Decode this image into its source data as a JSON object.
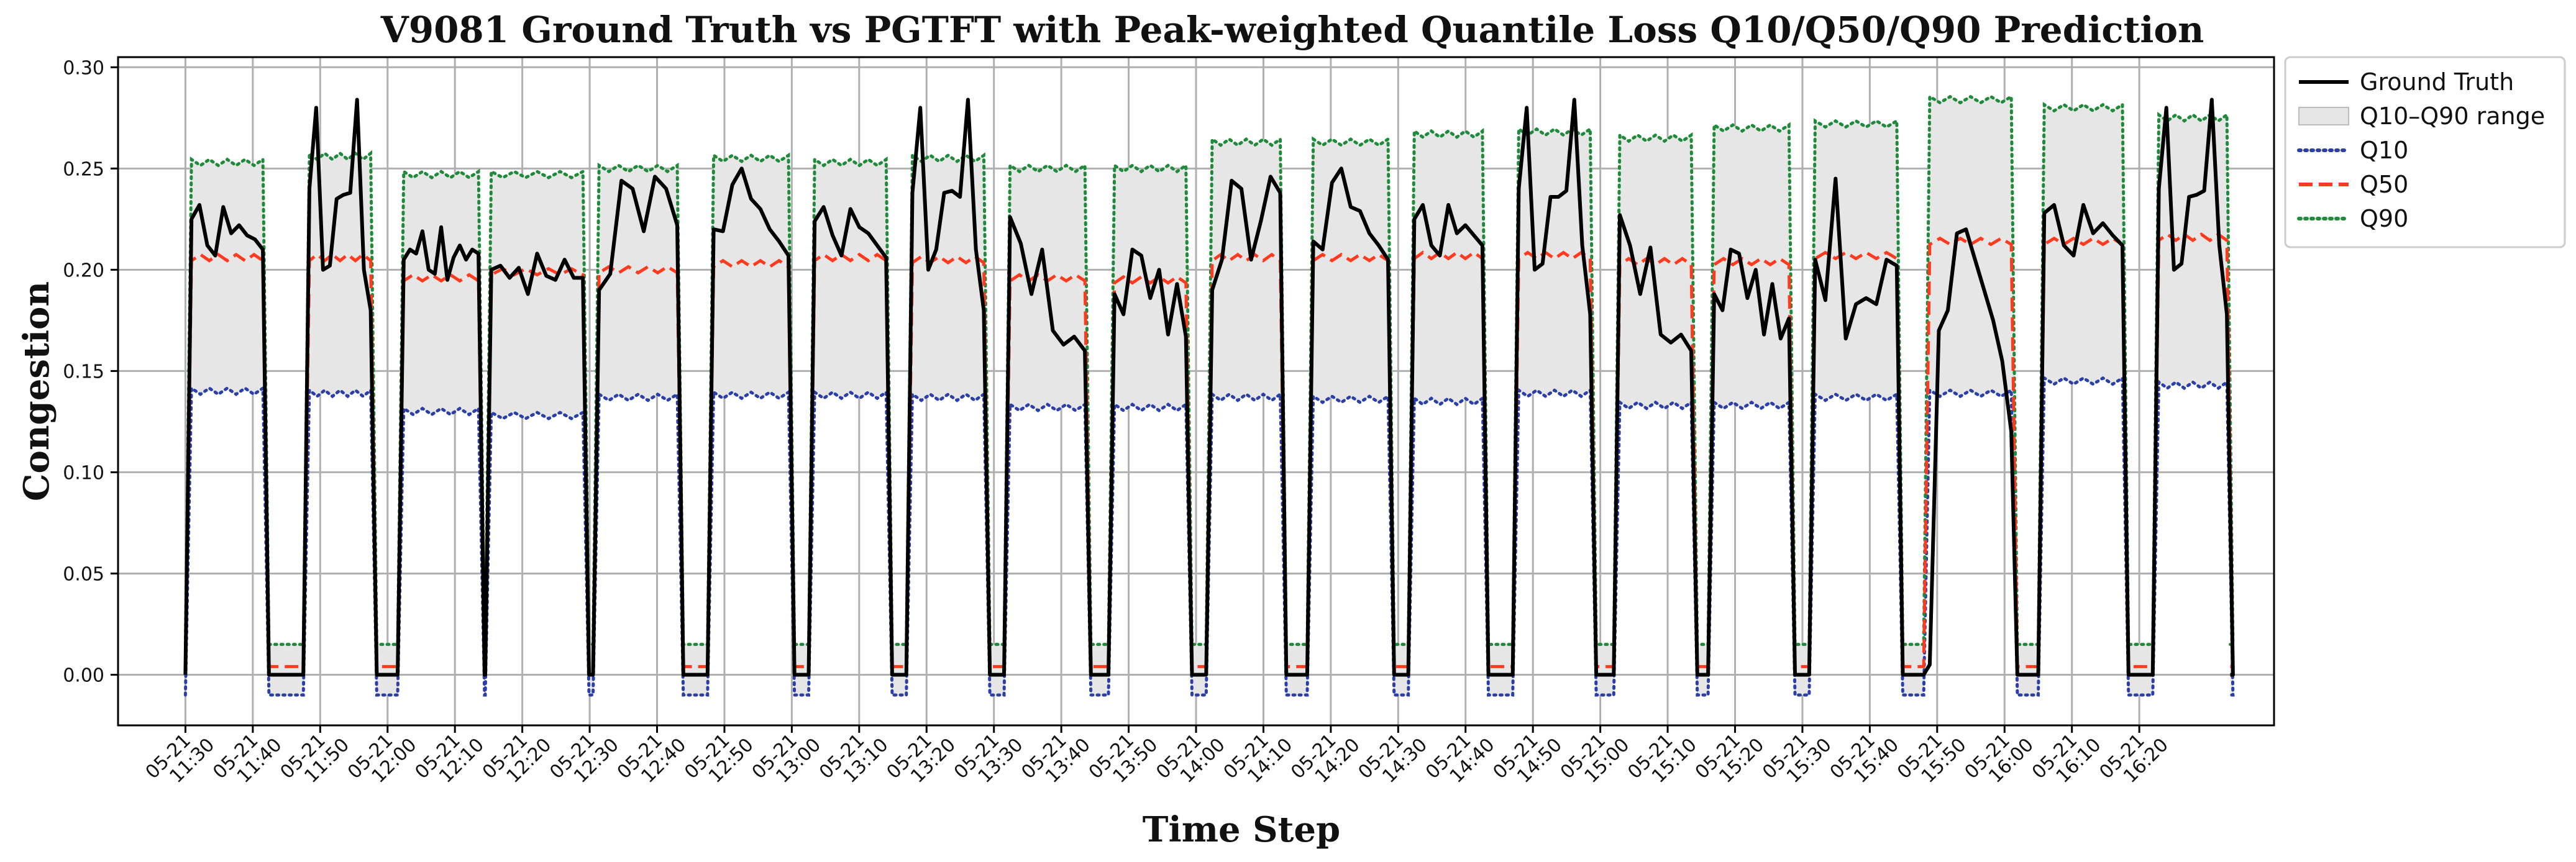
{
  "chart_data": {
    "type": "line",
    "title": "V9081 Ground Truth vs PGTFT with Peak-weighted Quantile Loss Q10/Q50/Q90 Prediction",
    "xlabel": "Time Step",
    "ylabel": "Congestion",
    "ylim": [
      -0.025,
      0.305
    ],
    "yticks": [
      0.0,
      0.05,
      0.1,
      0.15,
      0.2,
      0.25,
      0.3
    ],
    "ytick_labels": [
      "0.00",
      "0.05",
      "0.10",
      "0.15",
      "0.20",
      "0.25",
      "0.30"
    ],
    "xlim": [
      -1,
      31
    ],
    "grid": true,
    "legend_position": "outside-top-right",
    "xticks": [
      {
        "date": "05-21",
        "time": "11:30"
      },
      {
        "date": "05-21",
        "time": "11:40"
      },
      {
        "date": "05-21",
        "time": "11:50"
      },
      {
        "date": "05-21",
        "time": "12:00"
      },
      {
        "date": "05-21",
        "time": "12:10"
      },
      {
        "date": "05-21",
        "time": "12:20"
      },
      {
        "date": "05-21",
        "time": "12:30"
      },
      {
        "date": "05-21",
        "time": "12:40"
      },
      {
        "date": "05-21",
        "time": "12:50"
      },
      {
        "date": "05-21",
        "time": "13:00"
      },
      {
        "date": "05-21",
        "time": "13:10"
      },
      {
        "date": "05-21",
        "time": "13:20"
      },
      {
        "date": "05-21",
        "time": "13:30"
      },
      {
        "date": "05-21",
        "time": "13:40"
      },
      {
        "date": "05-21",
        "time": "13:50"
      },
      {
        "date": "05-21",
        "time": "14:00"
      },
      {
        "date": "05-21",
        "time": "14:10"
      },
      {
        "date": "05-21",
        "time": "14:20"
      },
      {
        "date": "05-21",
        "time": "14:30"
      },
      {
        "date": "05-21",
        "time": "14:40"
      },
      {
        "date": "05-21",
        "time": "14:50"
      },
      {
        "date": "05-21",
        "time": "15:00"
      },
      {
        "date": "05-21",
        "time": "15:10"
      },
      {
        "date": "05-21",
        "time": "15:20"
      },
      {
        "date": "05-21",
        "time": "15:30"
      },
      {
        "date": "05-21",
        "time": "15:40"
      },
      {
        "date": "05-21",
        "time": "15:50"
      },
      {
        "date": "05-21",
        "time": "16:00"
      },
      {
        "date": "05-21",
        "time": "16:10"
      },
      {
        "date": "05-21",
        "time": "16:20"
      }
    ],
    "legend": [
      {
        "key": "gt",
        "label": "Ground Truth"
      },
      {
        "key": "range",
        "label": "Q10–Q90 range"
      },
      {
        "key": "q10",
        "label": "Q10"
      },
      {
        "key": "q50",
        "label": "Q50"
      },
      {
        "key": "q90",
        "label": "Q90"
      }
    ],
    "colors": {
      "gt": "#000000",
      "range": "#e6e6e6",
      "range_edge": "#bdbdbd",
      "q10": "#2b3fa8",
      "q50": "#ff3b1f",
      "q90": "#1f8a3a",
      "grid": "#b0b0b0"
    },
    "segments": [
      {
        "start": 0.0,
        "end": 1.15,
        "gt": [
          0.0,
          0.225,
          0.232,
          0.212,
          0.207,
          0.231,
          0.218,
          0.222,
          0.217,
          0.215,
          0.21
        ],
        "q10": 0.14,
        "q50": 0.206,
        "q90": 0.253
      },
      {
        "start": 1.75,
        "end": 2.75,
        "gt": [
          0.0,
          0.24,
          0.28,
          0.2,
          0.202,
          0.235,
          0.237,
          0.238,
          0.284,
          0.2,
          0.18
        ],
        "q10": 0.139,
        "q50": 0.206,
        "q90": 0.256
      },
      {
        "start": 3.15,
        "end": 4.35,
        "gt": [
          0.0,
          0.205,
          0.21,
          0.208,
          0.219,
          0.2,
          0.198,
          0.221,
          0.195,
          0.206,
          0.212,
          0.205,
          0.21,
          0.208
        ],
        "q10": 0.13,
        "q50": 0.196,
        "q90": 0.247
      },
      {
        "start": 4.45,
        "end": 5.9,
        "gt": [
          0.0,
          0.2,
          0.202,
          0.196,
          0.201,
          0.188,
          0.208,
          0.197,
          0.195,
          0.205,
          0.196,
          0.196
        ],
        "q10": 0.128,
        "q50": 0.199,
        "q90": 0.247
      },
      {
        "start": 6.05,
        "end": 7.3,
        "gt": [
          0.0,
          0.19,
          0.198,
          0.244,
          0.24,
          0.219,
          0.246,
          0.24,
          0.222
        ],
        "q10": 0.137,
        "q50": 0.2,
        "q90": 0.25
      },
      {
        "start": 7.75,
        "end": 8.95,
        "gt": [
          0.0,
          0.22,
          0.219,
          0.242,
          0.25,
          0.235,
          0.23,
          0.22,
          0.214,
          0.207
        ],
        "q10": 0.138,
        "q50": 0.203,
        "q90": 0.255
      },
      {
        "start": 9.25,
        "end": 10.4,
        "gt": [
          0.0,
          0.224,
          0.231,
          0.217,
          0.207,
          0.23,
          0.221,
          0.218,
          0.212,
          0.206
        ],
        "q10": 0.138,
        "q50": 0.206,
        "q90": 0.253
      },
      {
        "start": 10.7,
        "end": 11.85,
        "gt": [
          0.0,
          0.238,
          0.28,
          0.2,
          0.21,
          0.238,
          0.239,
          0.236,
          0.284,
          0.21,
          0.18
        ],
        "q10": 0.137,
        "q50": 0.205,
        "q90": 0.255
      },
      {
        "start": 12.15,
        "end": 13.35,
        "gt": [
          0.0,
          0.226,
          0.213,
          0.188,
          0.21,
          0.17,
          0.163,
          0.167,
          0.16
        ],
        "q10": 0.132,
        "q50": 0.196,
        "q90": 0.25
      },
      {
        "start": 13.7,
        "end": 14.85,
        "gt": [
          0.0,
          0.188,
          0.178,
          0.21,
          0.207,
          0.186,
          0.2,
          0.168,
          0.193,
          0.167
        ],
        "q10": 0.132,
        "q50": 0.195,
        "q90": 0.25
      },
      {
        "start": 15.15,
        "end": 16.25,
        "gt": [
          0.0,
          0.19,
          0.205,
          0.244,
          0.24,
          0.205,
          0.224,
          0.246,
          0.238
        ],
        "q10": 0.137,
        "q50": 0.206,
        "q90": 0.263
      },
      {
        "start": 16.65,
        "end": 17.85,
        "gt": [
          0.0,
          0.214,
          0.21,
          0.243,
          0.25,
          0.231,
          0.229,
          0.218,
          0.212,
          0.205
        ],
        "q10": 0.136,
        "q50": 0.206,
        "q90": 0.263
      },
      {
        "start": 18.15,
        "end": 19.25,
        "gt": [
          0.0,
          0.225,
          0.232,
          0.212,
          0.207,
          0.232,
          0.218,
          0.222,
          0.217,
          0.212
        ],
        "q10": 0.135,
        "q50": 0.207,
        "q90": 0.267
      },
      {
        "start": 19.7,
        "end": 20.85,
        "gt": [
          0.0,
          0.24,
          0.28,
          0.2,
          0.203,
          0.236,
          0.236,
          0.239,
          0.284,
          0.212,
          0.178
        ],
        "q10": 0.139,
        "q50": 0.207,
        "q90": 0.268
      },
      {
        "start": 21.2,
        "end": 22.35,
        "gt": [
          0.0,
          0.227,
          0.212,
          0.188,
          0.211,
          0.168,
          0.164,
          0.168,
          0.16
        ],
        "q10": 0.133,
        "q50": 0.204,
        "q90": 0.265
      },
      {
        "start": 22.6,
        "end": 23.8,
        "gt": [
          0.0,
          0.188,
          0.18,
          0.21,
          0.208,
          0.186,
          0.2,
          0.168,
          0.193,
          0.166,
          0.176
        ],
        "q10": 0.133,
        "q50": 0.204,
        "q90": 0.27
      },
      {
        "start": 24.1,
        "end": 25.4,
        "gt": [
          0.0,
          0.205,
          0.185,
          0.245,
          0.166,
          0.183,
          0.186,
          0.183,
          0.205,
          0.202
        ],
        "q10": 0.137,
        "q50": 0.207,
        "q90": 0.272
      },
      {
        "start": 25.8,
        "end": 27.1,
        "gt": [
          0.0,
          0.005,
          0.17,
          0.18,
          0.218,
          0.22,
          0.205,
          0.19,
          0.175,
          0.155,
          0.12
        ],
        "q10": 0.139,
        "q50": 0.214,
        "q90": 0.284
      },
      {
        "start": 27.5,
        "end": 28.75,
        "gt": [
          0.0,
          0.228,
          0.232,
          0.212,
          0.207,
          0.232,
          0.218,
          0.223,
          0.217,
          0.212
        ],
        "q10": 0.145,
        "q50": 0.214,
        "q90": 0.28
      },
      {
        "start": 29.2,
        "end": 30.3,
        "gt": [
          0.0,
          0.24,
          0.28,
          0.2,
          0.203,
          0.236,
          0.237,
          0.239,
          0.284,
          0.212,
          0.178
        ],
        "q10": 0.143,
        "q50": 0.216,
        "q90": 0.275
      }
    ],
    "off_levels": {
      "gt": 0.0,
      "q10": -0.01,
      "q50": 0.004,
      "q90": 0.015
    }
  }
}
